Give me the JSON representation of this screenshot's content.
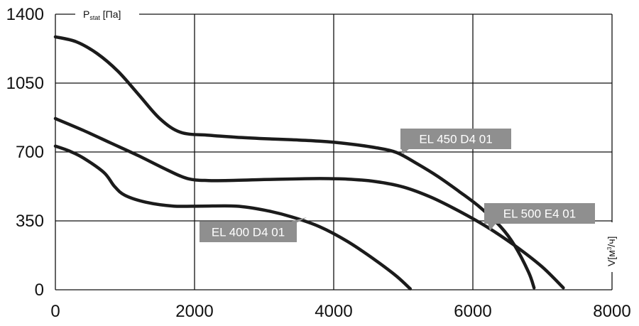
{
  "chart_data": {
    "type": "line",
    "title": "",
    "xlabel": "V[м3/ч]",
    "xlabel_parts": {
      "main": "V[м",
      "sup": "3",
      "end": "/ч]"
    },
    "ylabel": "Pstat [Па]",
    "ylabel_parts": {
      "main": "P",
      "sub": "stat",
      "end": " [Па]"
    },
    "xlim": [
      0,
      8000
    ],
    "ylim": [
      0,
      1400
    ],
    "x_ticks": [
      0,
      2000,
      4000,
      6000,
      8000
    ],
    "x_tick_labels": [
      "0",
      "2000",
      "4000",
      "6000",
      "8000"
    ],
    "y_ticks": [
      0,
      350,
      700,
      1050,
      1400
    ],
    "y_tick_labels": [
      "0",
      "350",
      "700",
      "1050",
      "1400"
    ],
    "grid": true,
    "legend": "none",
    "series": [
      {
        "name": "EL 450 D4 01",
        "x": [
          0,
          300,
          600,
          900,
          1200,
          1500,
          1800,
          2200,
          2600,
          3000,
          3400,
          3800,
          4200,
          4600,
          4900,
          5200,
          5500,
          5800,
          6100,
          6400,
          6600,
          6800,
          6880
        ],
        "y": [
          1285,
          1260,
          1200,
          1110,
          990,
          870,
          800,
          785,
          775,
          768,
          762,
          755,
          742,
          722,
          698,
          640,
          575,
          500,
          420,
          320,
          225,
          90,
          10
        ]
      },
      {
        "name": "EL 500 E4 01",
        "x": [
          0,
          400,
          800,
          1200,
          1600,
          1900,
          2200,
          2600,
          3000,
          3400,
          3800,
          4200,
          4600,
          5000,
          5400,
          5800,
          6200,
          6600,
          7000,
          7300
        ],
        "y": [
          870,
          810,
          745,
          680,
          610,
          565,
          555,
          556,
          560,
          563,
          565,
          562,
          550,
          522,
          470,
          400,
          320,
          225,
          115,
          10
        ]
      },
      {
        "name": "EL 400 D4 01",
        "x": [
          0,
          200,
          400,
          700,
          850,
          1000,
          1300,
          1700,
          2100,
          2600,
          3000,
          3400,
          3800,
          4200,
          4600,
          4900,
          5100
        ],
        "y": [
          730,
          705,
          670,
          595,
          525,
          480,
          445,
          425,
          425,
          425,
          405,
          370,
          320,
          245,
          150,
          70,
          5
        ]
      }
    ],
    "annotations": [
      {
        "text": "EL 450 D4 01",
        "series": "EL 450 D4 01"
      },
      {
        "text": "EL 500 E4 01",
        "series": "EL 500 E4 01"
      },
      {
        "text": "EL 400 D4 01",
        "series": "EL 400 D4 01"
      }
    ]
  }
}
